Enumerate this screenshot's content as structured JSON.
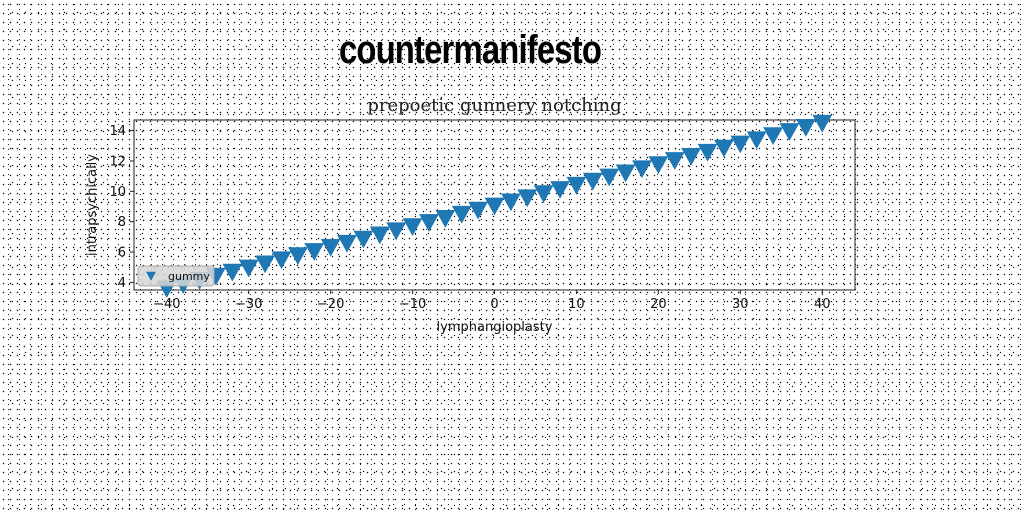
{
  "headline": "countermanifesto",
  "chart_data": {
    "type": "scatter",
    "title": "prepoetic gunnery notching",
    "xlabel": "lymphangioplasty",
    "ylabel": "intrapsychically",
    "xlim": [
      -44,
      44
    ],
    "ylim": [
      3.5,
      14.7
    ],
    "xticks": [
      -40,
      -30,
      -20,
      -10,
      0,
      10,
      20,
      30,
      40
    ],
    "yticks": [
      4,
      6,
      8,
      10,
      12,
      14
    ],
    "grid": false,
    "legend_position": "lower-left",
    "marker": "triangle-down",
    "series": [
      {
        "name": "gummy",
        "color": "#1f77b4",
        "x_start": -40,
        "x_end": 40,
        "x_step": 2,
        "y_start": 3.6,
        "y_end": 14.5
      }
    ]
  }
}
